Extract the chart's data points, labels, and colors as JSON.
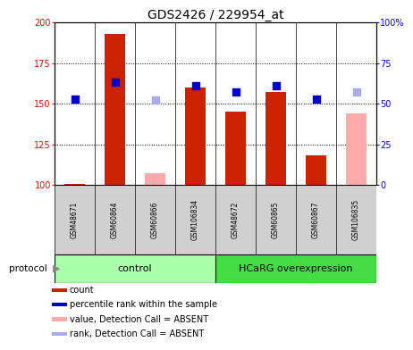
{
  "title": "GDS2426 / 229954_at",
  "samples": [
    "GSM48671",
    "GSM60864",
    "GSM60866",
    "GSM106834",
    "GSM48672",
    "GSM60865",
    "GSM60867",
    "GSM106835"
  ],
  "red_values": [
    100.5,
    193,
    null,
    160,
    145,
    157,
    118,
    null
  ],
  "pink_values": [
    null,
    null,
    107,
    null,
    null,
    null,
    null,
    144
  ],
  "blue_values": [
    153,
    163,
    null,
    161,
    157,
    161,
    153,
    null
  ],
  "light_blue_values": [
    null,
    null,
    152,
    null,
    null,
    null,
    null,
    157
  ],
  "ylim_left": [
    100,
    200
  ],
  "ylim_right": [
    0,
    100
  ],
  "yticks_left": [
    100,
    125,
    150,
    175,
    200
  ],
  "yticks_right": [
    0,
    25,
    50,
    75,
    100
  ],
  "ytick_labels_left": [
    "100",
    "125",
    "150",
    "175",
    "200"
  ],
  "ytick_labels_right": [
    "0",
    "25",
    "50",
    "75",
    "100%"
  ],
  "bar_width": 0.5,
  "dot_size": 35,
  "red_color": "#cc2200",
  "pink_color": "#ffaaaa",
  "blue_color": "#0000cc",
  "light_blue_color": "#aaaaee",
  "background_color": "#ffffff",
  "label_area_color": "#d0d0d0",
  "ctrl_color": "#aaffaa",
  "hcarg_color": "#44dd44",
  "title_fontsize": 10,
  "legend_items": [
    {
      "color": "#cc2200",
      "label": "count"
    },
    {
      "color": "#0000cc",
      "label": "percentile rank within the sample"
    },
    {
      "color": "#ffaaaa",
      "label": "value, Detection Call = ABSENT"
    },
    {
      "color": "#aaaaee",
      "label": "rank, Detection Call = ABSENT"
    }
  ]
}
